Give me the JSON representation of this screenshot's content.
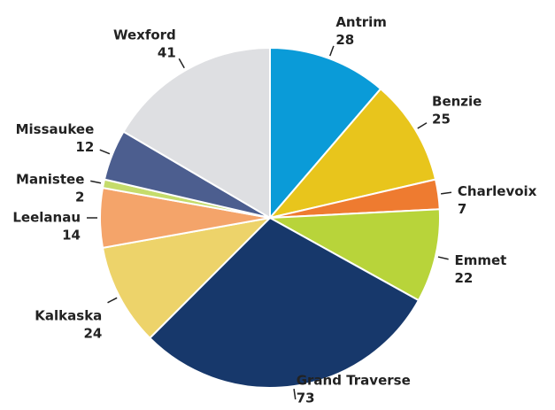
{
  "chart_data": {
    "type": "pie",
    "categories": [
      "Antrim",
      "Benzie",
      "Charlevoix",
      "Emmet",
      "Grand Traverse",
      "Kalkaska",
      "Leelanau",
      "Manistee",
      "Missaukee",
      "Wexford"
    ],
    "values": [
      28,
      25,
      7,
      22,
      73,
      24,
      14,
      2,
      12,
      41
    ],
    "colors": [
      "#0a9bd8",
      "#e8c51c",
      "#ee7b30",
      "#b8d43a",
      "#17386b",
      "#edd36a",
      "#f4a46a",
      "#c5dc6b",
      "#4c5e8f",
      "#dedfe2"
    ]
  }
}
